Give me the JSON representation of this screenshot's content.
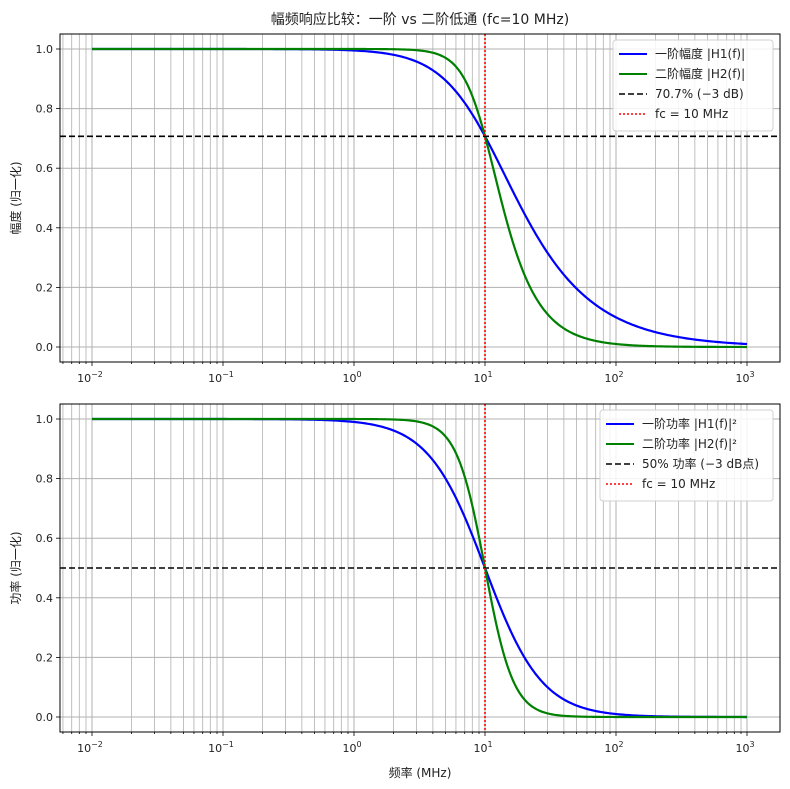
{
  "figure": {
    "title": "幅频响应比较：一阶 vs 二阶低通 (fc=10 MHz)",
    "xlabel": "频率 (MHz)"
  },
  "chart_data": [
    {
      "type": "line",
      "title": "幅频响应比较：一阶 vs 二阶低通 (fc=10 MHz)",
      "xlabel": "",
      "ylabel": "幅度 (归一化)",
      "xscale": "log",
      "xlim": [
        0.006,
        1800
      ],
      "ylim": [
        -0.05,
        1.05
      ],
      "xticks": [
        "10^-2",
        "10^-1",
        "10^0",
        "10^1",
        "10^2",
        "10^3"
      ],
      "yticks": [
        "0.0",
        "0.2",
        "0.4",
        "0.6",
        "0.8",
        "1.0"
      ],
      "grid": "major+minor",
      "legend_position": "upper right",
      "x": [
        0.01,
        0.1,
        1,
        2,
        5,
        8,
        10,
        12,
        15,
        20,
        30,
        50,
        100,
        200,
        500,
        1000
      ],
      "series": [
        {
          "name": "一阶幅度 |H1(f)|",
          "color": "#0000ff",
          "style": "solid",
          "values": [
            1.0,
            1.0,
            0.995,
            0.981,
            0.894,
            0.781,
            0.707,
            0.64,
            0.555,
            0.447,
            0.316,
            0.196,
            0.0995,
            0.0499,
            0.02,
            0.01
          ]
        },
        {
          "name": "二阶幅度 |H2(f)|",
          "color": "#008000",
          "style": "solid",
          "values": [
            1.0,
            1.0,
            1.0,
            0.999,
            0.97,
            0.842,
            0.707,
            0.57,
            0.406,
            0.243,
            0.11,
            0.04,
            0.01,
            0.0025,
            0.0004,
            0.0001
          ]
        },
        {
          "name": "70.7% (−3 dB)",
          "color": "#000000",
          "style": "dashed",
          "hline": 0.707
        },
        {
          "name": "fc = 10 MHz",
          "color": "#ff0000",
          "style": "dotted",
          "vline": 10
        }
      ]
    },
    {
      "type": "line",
      "title": "",
      "xlabel": "频率 (MHz)",
      "ylabel": "功率 (归一化)",
      "xscale": "log",
      "xlim": [
        0.006,
        1800
      ],
      "ylim": [
        -0.05,
        1.05
      ],
      "xticks": [
        "10^-2",
        "10^-1",
        "10^0",
        "10^1",
        "10^2",
        "10^3"
      ],
      "yticks": [
        "0.0",
        "0.2",
        "0.4",
        "0.6",
        "0.8",
        "1.0"
      ],
      "grid": "major+minor",
      "legend_position": "upper right",
      "x": [
        0.01,
        0.1,
        1,
        2,
        5,
        8,
        10,
        12,
        15,
        20,
        30,
        50,
        100,
        200,
        500,
        1000
      ],
      "series": [
        {
          "name": "一阶功率 |H1(f)|²",
          "color": "#0000ff",
          "style": "solid",
          "values": [
            1.0,
            1.0,
            0.99,
            0.962,
            0.8,
            0.61,
            0.5,
            0.41,
            0.308,
            0.2,
            0.1,
            0.0385,
            0.0099,
            0.0025,
            0.0004,
            0.0001
          ]
        },
        {
          "name": "二阶功率 |H2(f)|²",
          "color": "#008000",
          "style": "solid",
          "values": [
            1.0,
            1.0,
            1.0,
            0.998,
            0.941,
            0.709,
            0.5,
            0.325,
            0.165,
            0.059,
            0.012,
            0.0016,
            0.0001,
            0.0,
            0.0,
            0.0
          ]
        },
        {
          "name": "50% 功率 (−3 dB点)",
          "color": "#000000",
          "style": "dashed",
          "hline": 0.5
        },
        {
          "name": "fc = 10 MHz",
          "color": "#ff0000",
          "style": "dotted",
          "vline": 10
        }
      ]
    }
  ],
  "legend_top": [
    "一阶幅度 |H1(f)|",
    "二阶幅度 |H2(f)|",
    "70.7% (−3 dB)",
    "fc = 10 MHz"
  ],
  "legend_bottom": [
    "一阶功率 |H1(f)|²",
    "二阶功率 |H2(f)|²",
    "50% 功率 (−3 dB点)",
    "fc = 10 MHz"
  ],
  "ylabels": {
    "top": "幅度 (归一化)",
    "bottom": "功率 (归一化)"
  },
  "yticklabels": [
    "0.0",
    "0.2",
    "0.4",
    "0.6",
    "0.8",
    "1.0"
  ],
  "xticklabels": [
    {
      "base": "10",
      "exp": "−2"
    },
    {
      "base": "10",
      "exp": "−1"
    },
    {
      "base": "10",
      "exp": "0"
    },
    {
      "base": "10",
      "exp": "1"
    },
    {
      "base": "10",
      "exp": "2"
    },
    {
      "base": "10",
      "exp": "3"
    }
  ],
  "params": {
    "fc": 10,
    "fmin": 0.01,
    "fmax": 1000
  }
}
